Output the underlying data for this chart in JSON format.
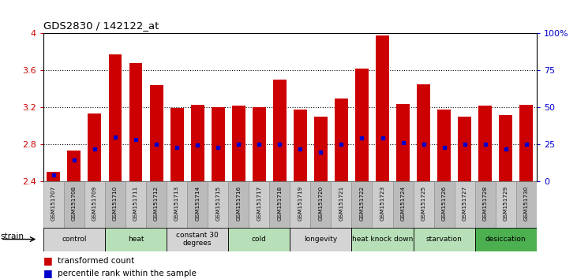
{
  "title": "GDS2830 / 142122_at",
  "samples": [
    "GSM151707",
    "GSM151708",
    "GSM151709",
    "GSM151710",
    "GSM151711",
    "GSM151712",
    "GSM151713",
    "GSM151714",
    "GSM151715",
    "GSM151716",
    "GSM151717",
    "GSM151718",
    "GSM151719",
    "GSM151720",
    "GSM151721",
    "GSM151722",
    "GSM151723",
    "GSM151724",
    "GSM151725",
    "GSM151726",
    "GSM151727",
    "GSM151728",
    "GSM151729",
    "GSM151730"
  ],
  "bar_heights": [
    2.5,
    2.73,
    3.13,
    3.77,
    3.68,
    3.44,
    3.19,
    3.23,
    3.2,
    3.22,
    3.2,
    3.5,
    3.18,
    3.1,
    3.3,
    3.62,
    3.98,
    3.24,
    3.45,
    3.18,
    3.1,
    3.22,
    3.12,
    3.23
  ],
  "blue_dot_y": [
    2.47,
    2.63,
    2.75,
    2.88,
    2.85,
    2.8,
    2.77,
    2.79,
    2.77,
    2.8,
    2.8,
    2.8,
    2.75,
    2.72,
    2.8,
    2.87,
    2.87,
    2.82,
    2.8,
    2.77,
    2.8,
    2.8,
    2.75,
    2.8
  ],
  "bar_color": "#cc0000",
  "dot_color": "#0000cc",
  "ylim": [
    2.4,
    4.0
  ],
  "yticks": [
    2.4,
    2.8,
    3.2,
    3.6,
    4.0
  ],
  "ytick_labels_left": [
    "2.4",
    "2.8",
    "3.2",
    "3.6",
    "4"
  ],
  "right_yticks": [
    0,
    25,
    50,
    75,
    100
  ],
  "right_ytick_labels": [
    "0",
    "25",
    "50",
    "75",
    "100%"
  ],
  "groups": [
    {
      "label": "control",
      "start": 0,
      "end": 2,
      "color": "#d4d4d4"
    },
    {
      "label": "heat",
      "start": 3,
      "end": 5,
      "color": "#b8e0b8"
    },
    {
      "label": "constant 30\ndegrees",
      "start": 6,
      "end": 8,
      "color": "#d4d4d4"
    },
    {
      "label": "cold",
      "start": 9,
      "end": 11,
      "color": "#b8e0b8"
    },
    {
      "label": "longevity",
      "start": 12,
      "end": 14,
      "color": "#d4d4d4"
    },
    {
      "label": "heat knock down",
      "start": 15,
      "end": 17,
      "color": "#b8e0b8"
    },
    {
      "label": "starvation",
      "start": 18,
      "end": 20,
      "color": "#b8e0b8"
    },
    {
      "label": "desiccation",
      "start": 21,
      "end": 23,
      "color": "#4caf50"
    }
  ],
  "bar_width": 0.65,
  "ylabel_left_color": "#cc0000",
  "ylabel_right_color": "#0000cc"
}
